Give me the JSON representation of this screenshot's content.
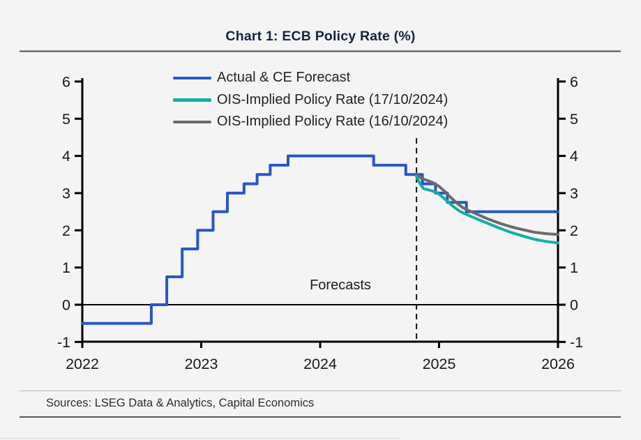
{
  "title": "Chart 1: ECB Policy Rate (%)",
  "annotation": "Forecasts",
  "sources": "Sources: LSEG Data & Analytics, Capital Economics",
  "colors": {
    "actual_forecast_blue": "#2a56c5",
    "ois_17_10_teal": "#14b0a0",
    "ois_16_10_gray": "#6b6b6b",
    "axis_black": "#000000",
    "title_navy": "#17243a"
  },
  "chart_data": {
    "type": "line",
    "title": "Chart 1: ECB Policy Rate (%)",
    "xlabel": "",
    "ylabel": "",
    "xlim": [
      2022,
      2026
    ],
    "ylim": [
      -1,
      6
    ],
    "x_ticks": [
      2022,
      2023,
      2024,
      2025,
      2026
    ],
    "y_ticks": [
      -1,
      0,
      1,
      2,
      3,
      4,
      5,
      6
    ],
    "grid": false,
    "zero_line": true,
    "dual_y_axis": true,
    "legend_position": "top-left-inside",
    "forecast_divider_x": 2024.81,
    "annotation": "Forecasts",
    "series": [
      {
        "name": "Actual & CE Forecast",
        "color": "#2a56c5",
        "style": "step",
        "points": [
          [
            2022.0,
            -0.5
          ],
          [
            2022.58,
            -0.5
          ],
          [
            2022.58,
            0
          ],
          [
            2022.71,
            0
          ],
          [
            2022.71,
            0.75
          ],
          [
            2022.84,
            0.75
          ],
          [
            2022.84,
            1.5
          ],
          [
            2022.97,
            1.5
          ],
          [
            2022.97,
            2.0
          ],
          [
            2023.1,
            2.0
          ],
          [
            2023.1,
            2.5
          ],
          [
            2023.22,
            2.5
          ],
          [
            2023.22,
            3.0
          ],
          [
            2023.36,
            3.0
          ],
          [
            2023.36,
            3.25
          ],
          [
            2023.47,
            3.25
          ],
          [
            2023.47,
            3.5
          ],
          [
            2023.58,
            3.5
          ],
          [
            2023.58,
            3.75
          ],
          [
            2023.73,
            3.75
          ],
          [
            2023.73,
            4.0
          ],
          [
            2024.45,
            4.0
          ],
          [
            2024.45,
            3.75
          ],
          [
            2024.72,
            3.75
          ],
          [
            2024.72,
            3.5
          ],
          [
            2024.86,
            3.5
          ],
          [
            2024.86,
            3.25
          ],
          [
            2024.97,
            3.25
          ],
          [
            2024.97,
            3.0
          ],
          [
            2025.07,
            3.0
          ],
          [
            2025.07,
            2.75
          ],
          [
            2025.23,
            2.75
          ],
          [
            2025.23,
            2.5
          ],
          [
            2026.0,
            2.5
          ]
        ]
      },
      {
        "name": "OIS-Implied Policy Rate (17/10/2024)",
        "color": "#14b0a0",
        "style": "line",
        "points": [
          [
            2024.81,
            3.45
          ],
          [
            2024.84,
            3.25
          ],
          [
            2024.87,
            3.12
          ],
          [
            2024.93,
            3.07
          ],
          [
            2024.98,
            3.02
          ],
          [
            2025.02,
            2.92
          ],
          [
            2025.07,
            2.78
          ],
          [
            2025.12,
            2.64
          ],
          [
            2025.17,
            2.52
          ],
          [
            2025.22,
            2.44
          ],
          [
            2025.3,
            2.33
          ],
          [
            2025.4,
            2.2
          ],
          [
            2025.5,
            2.07
          ],
          [
            2025.6,
            1.95
          ],
          [
            2025.7,
            1.85
          ],
          [
            2025.8,
            1.76
          ],
          [
            2025.9,
            1.7
          ],
          [
            2026.0,
            1.66
          ]
        ]
      },
      {
        "name": "OIS-Implied Policy Rate (16/10/2024)",
        "color": "#6b6b6b",
        "style": "line",
        "points": [
          [
            2024.81,
            3.5
          ],
          [
            2024.85,
            3.4
          ],
          [
            2024.9,
            3.34
          ],
          [
            2024.95,
            3.28
          ],
          [
            2025.0,
            3.18
          ],
          [
            2025.05,
            3.04
          ],
          [
            2025.1,
            2.88
          ],
          [
            2025.15,
            2.73
          ],
          [
            2025.2,
            2.61
          ],
          [
            2025.25,
            2.53
          ],
          [
            2025.3,
            2.46
          ],
          [
            2025.4,
            2.32
          ],
          [
            2025.5,
            2.2
          ],
          [
            2025.6,
            2.1
          ],
          [
            2025.7,
            2.02
          ],
          [
            2025.8,
            1.95
          ],
          [
            2025.9,
            1.91
          ],
          [
            2026.0,
            1.89
          ]
        ]
      }
    ]
  }
}
